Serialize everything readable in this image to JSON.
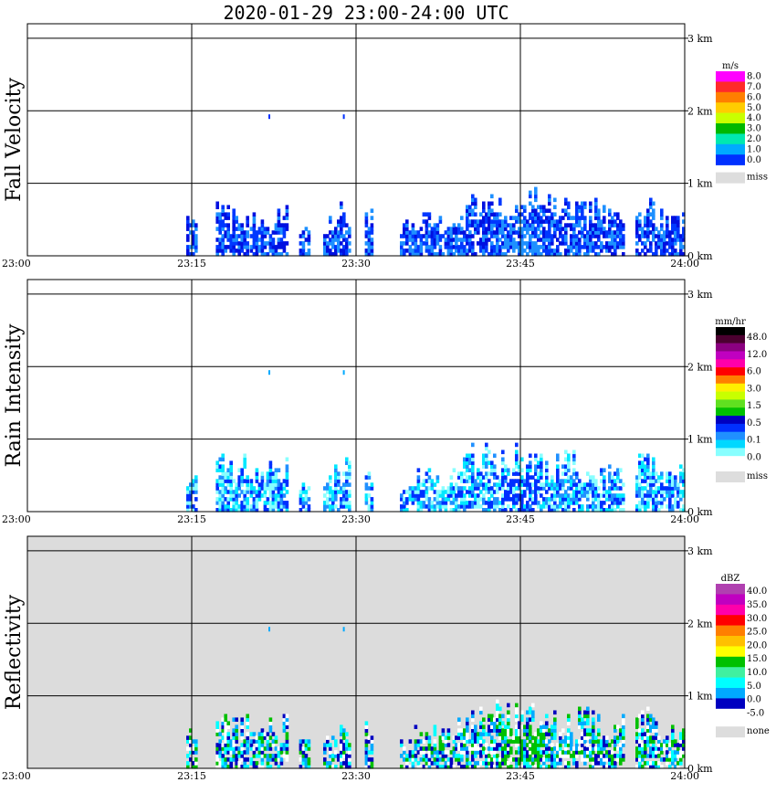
{
  "title": "2020-01-29   23:00-24:00 UTC",
  "chart_data": [
    {
      "type": "heatmap",
      "ylabel": "Fall Velocity",
      "x_ticks": [
        "23:00",
        "23:15",
        "23:30",
        "23:45",
        "24:00"
      ],
      "y_ticks": [
        "0 km",
        "1 km",
        "2 km",
        "3 km"
      ],
      "xlim": [
        0,
        60
      ],
      "ylim": [
        0,
        3.2
      ],
      "background": "#ffffff",
      "colorbar": {
        "unit": "m/s",
        "colors": [
          "#ff00ff",
          "#ff2a2a",
          "#ff7f00",
          "#ffcc00",
          "#c8ff00",
          "#00b800",
          "#00e8b0",
          "#00aaff",
          "#0030ff"
        ],
        "labels": [
          "8.0",
          "7.0",
          "6.0",
          "5.0",
          "4.0",
          "3.0",
          "2.0",
          "1.0",
          "0.0"
        ],
        "miss_color": "#dddddd",
        "miss_label": "miss"
      },
      "echo_colors": [
        "#0038ff",
        "#0010e0",
        "#1e90ff"
      ]
    },
    {
      "type": "heatmap",
      "ylabel": "Rain Intensity",
      "x_ticks": [
        "23:00",
        "23:15",
        "23:30",
        "23:45",
        "24:00"
      ],
      "y_ticks": [
        "0 km",
        "1 km",
        "2 km",
        "3 km"
      ],
      "xlim": [
        0,
        60
      ],
      "ylim": [
        0,
        3.2
      ],
      "background": "#ffffff",
      "colorbar": {
        "unit": "mm/hr",
        "colors": [
          "#000000",
          "#4b0030",
          "#8b0080",
          "#c000c0",
          "#ff00aa",
          "#ff0000",
          "#ff7f00",
          "#ffee00",
          "#c8ff00",
          "#60e020",
          "#00c000",
          "#0000c0",
          "#0030ff",
          "#2090ff",
          "#00d8ff",
          "#88ffff",
          "#ffffff"
        ],
        "labels": [
          "48.0",
          "12.0",
          "6.0",
          "3.0",
          "1.5",
          "0.5",
          "0.1",
          "0.0"
        ],
        "miss_color": "#dddddd",
        "miss_label": "miss"
      },
      "echo_colors": [
        "#88ffff",
        "#00e8ff",
        "#2090ff",
        "#0030ff"
      ]
    },
    {
      "type": "heatmap",
      "ylabel": "Reflectivity",
      "x_ticks": [
        "23:00",
        "23:15",
        "23:30",
        "23:45",
        "24:00"
      ],
      "y_ticks": [
        "0 km",
        "1 km",
        "2 km",
        "3 km"
      ],
      "xlim": [
        0,
        60
      ],
      "ylim": [
        0,
        3.2
      ],
      "background": "#dcdcdc",
      "colorbar": {
        "unit": "dBZ",
        "colors": [
          "#b040b0",
          "#c000c0",
          "#ff00aa",
          "#ff0000",
          "#ff7f00",
          "#ffc000",
          "#ffff00",
          "#00c000",
          "#40f0a0",
          "#00ffff",
          "#00aaff",
          "#0000c0",
          "#ffffff"
        ],
        "labels": [
          "40.0",
          "35.0",
          "30.0",
          "25.0",
          "20.0",
          "15.0",
          "10.0",
          "5.0",
          "0.0",
          "-5.0"
        ],
        "miss_color": "#dddddd",
        "miss_label": "none"
      },
      "echo_colors": [
        "#ffffff",
        "#0000c0",
        "#00aaff",
        "#00ffff",
        "#00c000"
      ]
    }
  ]
}
